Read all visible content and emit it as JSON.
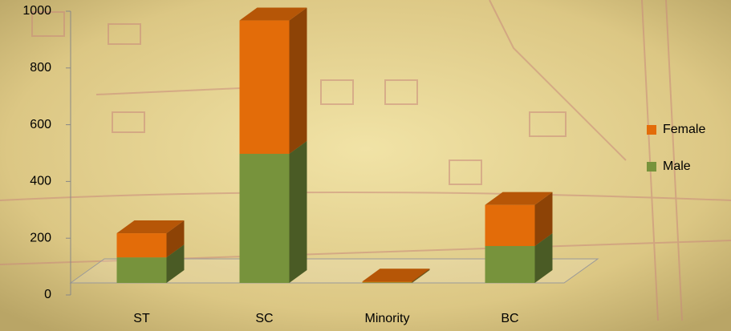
{
  "chart_data": {
    "type": "bar3d_stacked",
    "categories": [
      "ST",
      "SC",
      "Minority",
      "BC"
    ],
    "series": [
      {
        "name": "Male",
        "color": "#77933c",
        "values": [
          90,
          455,
          2,
          130
        ]
      },
      {
        "name": "Female",
        "color": "#e36c09",
        "values": [
          85,
          470,
          3,
          145
        ]
      }
    ],
    "ylim": [
      0,
      1000
    ],
    "yticks": [
      0,
      200,
      400,
      600,
      800,
      1000
    ],
    "legend": "right"
  }
}
